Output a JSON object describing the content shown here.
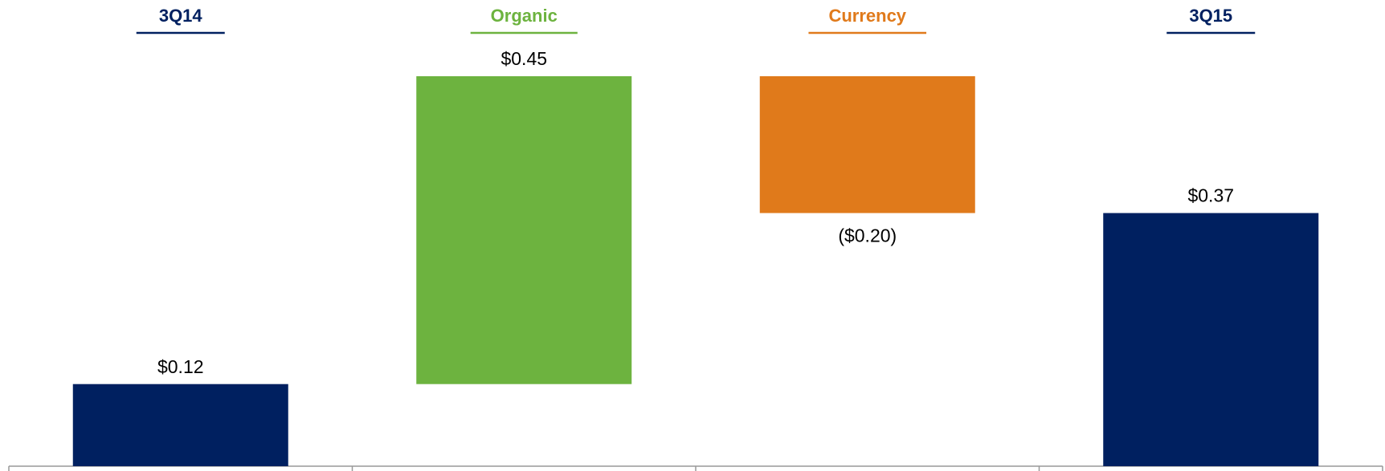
{
  "chart_data": {
    "type": "waterfall",
    "categories": [
      "3Q14",
      "Organic",
      "Currency",
      "3Q15"
    ],
    "values": [
      0.12,
      0.45,
      -0.2,
      0.37
    ],
    "value_labels": [
      "$0.12",
      "$0.45",
      "($0.20)",
      "$0.37"
    ],
    "colors": [
      "#002060",
      "#6db33f",
      "#e07a1b",
      "#002060"
    ]
  }
}
